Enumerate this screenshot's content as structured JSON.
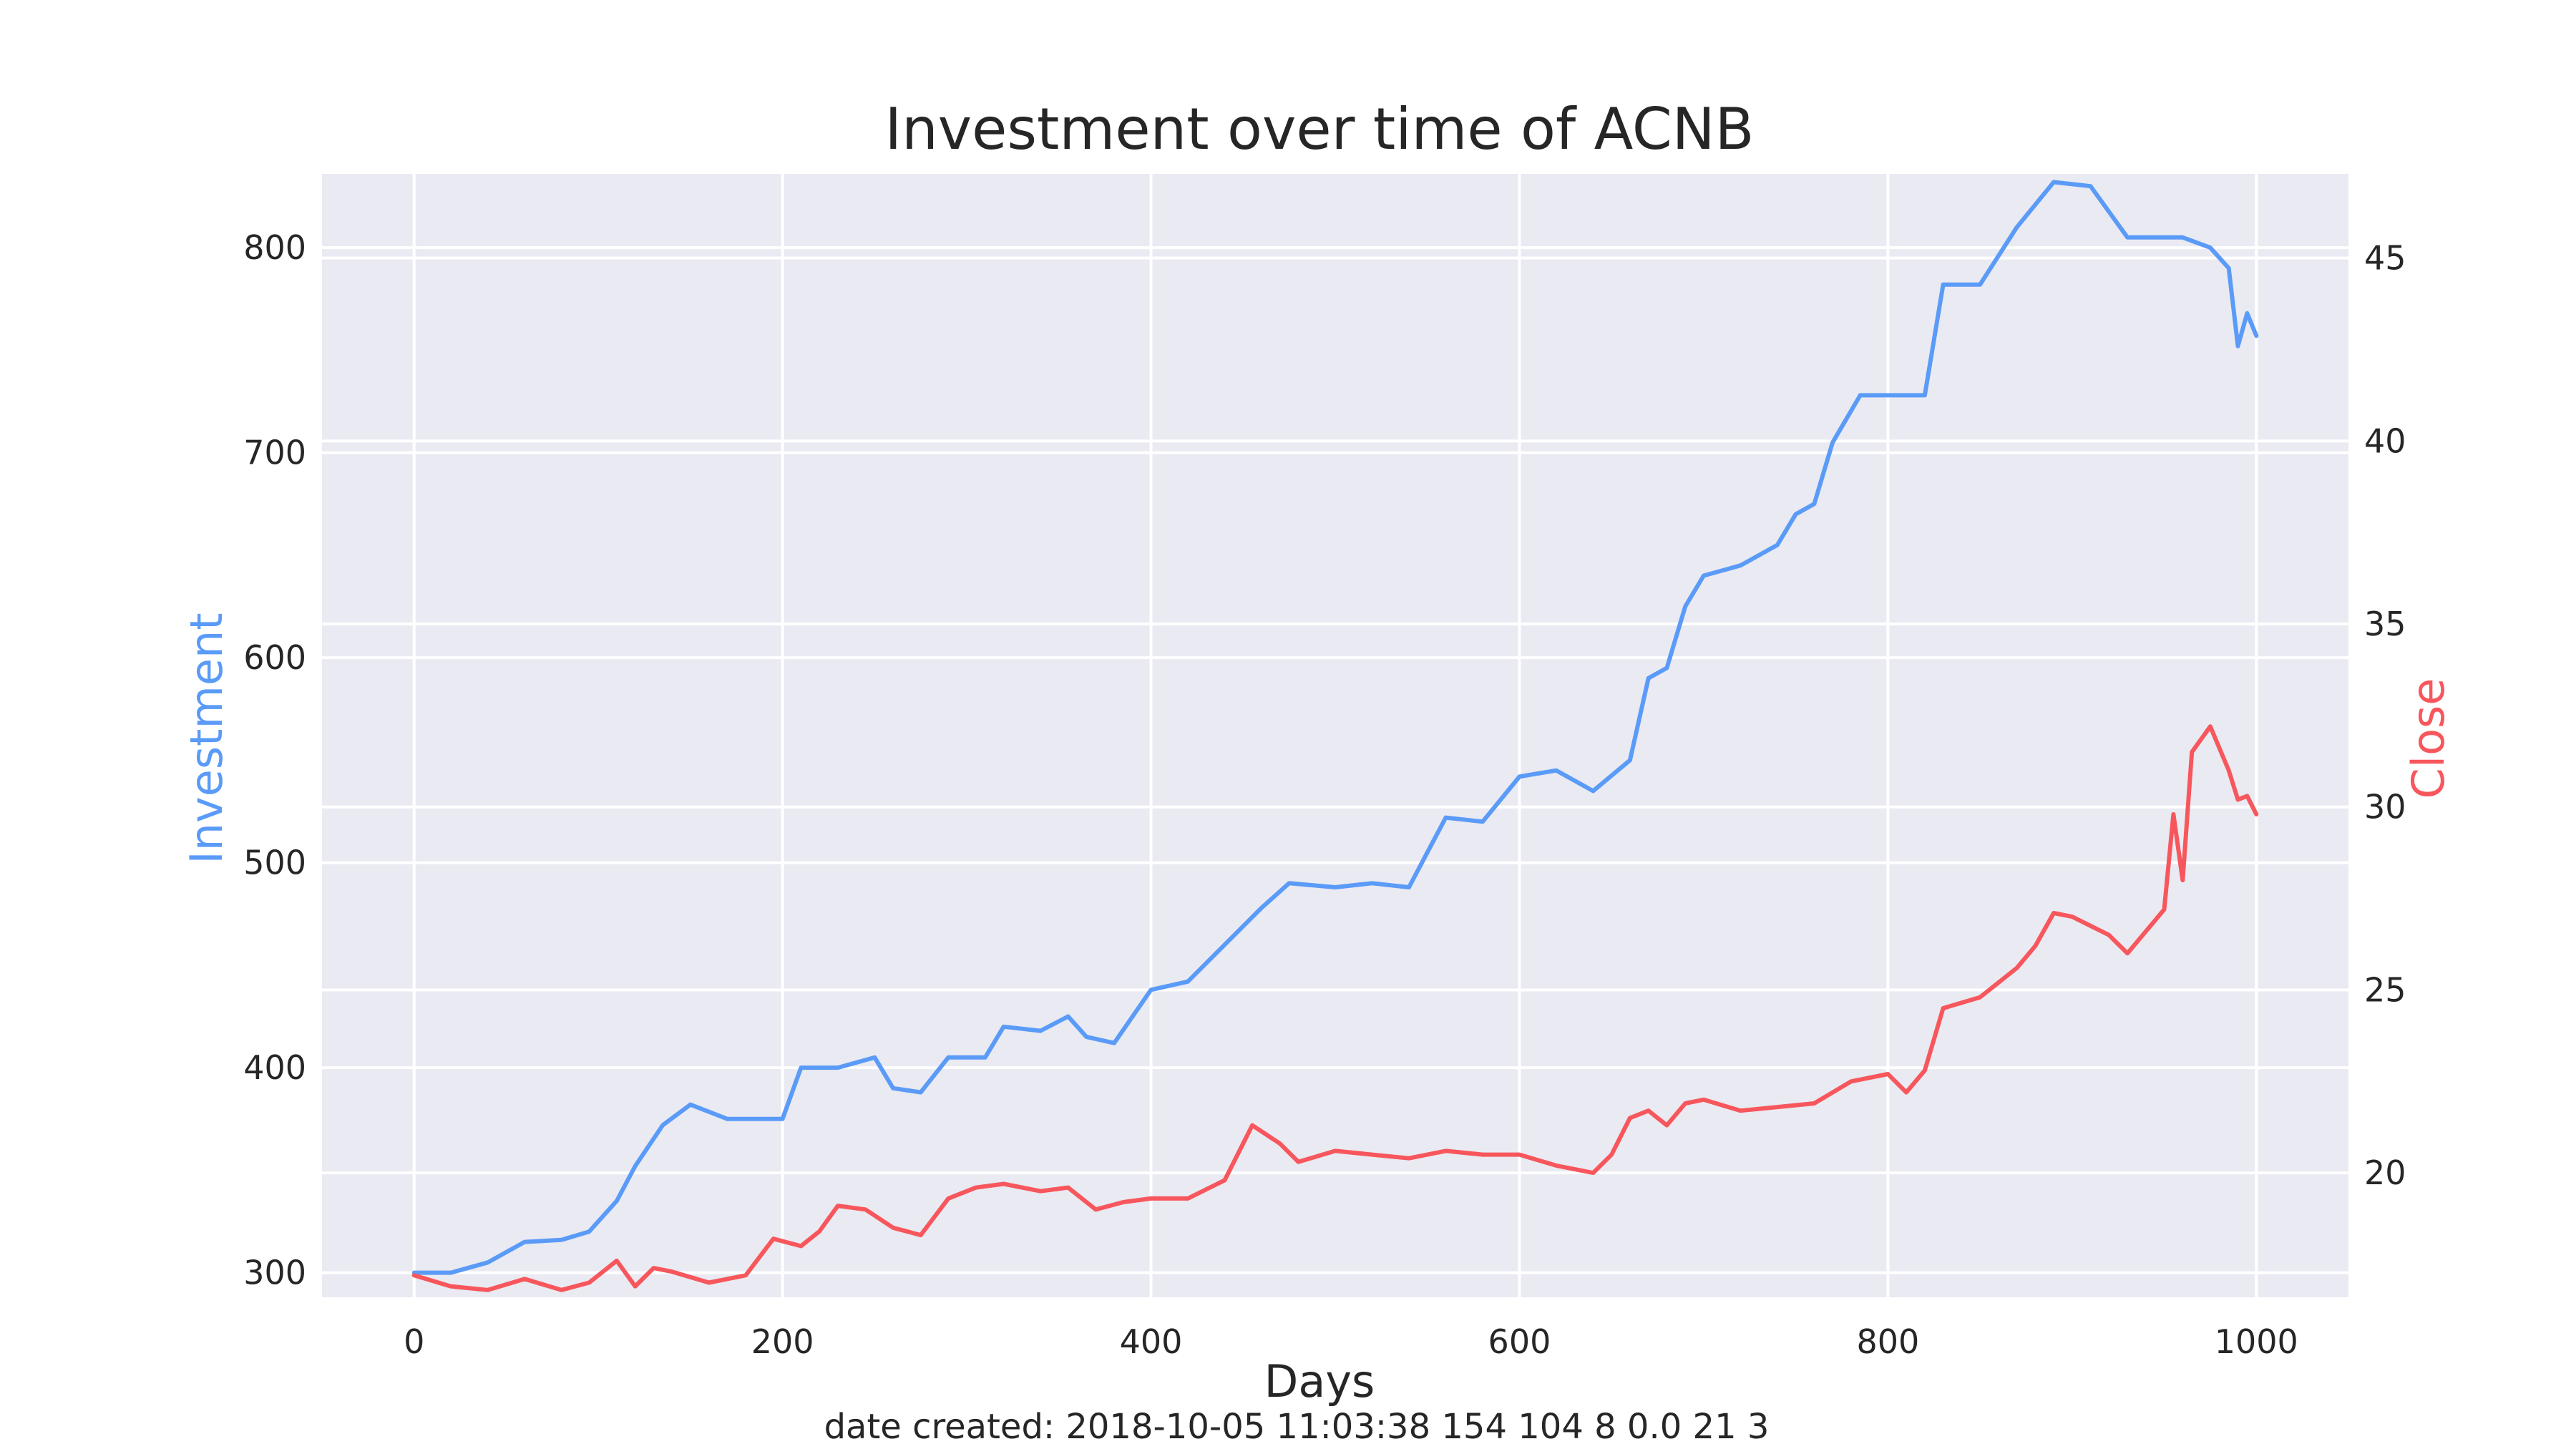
{
  "chart_data": {
    "type": "line",
    "title": "Investment over time of ACNB",
    "xlabel": "Days",
    "ylabel_left": "Investment",
    "ylabel_right": "Close",
    "footer": "date created: 2018-10-05 11:03:38 154 104 8 0.0 21 3",
    "xlim": [
      -50,
      1050
    ],
    "ylim_left": [
      288,
      836
    ],
    "ylim_right": [
      16.6,
      47.3
    ],
    "xticks": [
      0,
      200,
      400,
      600,
      800,
      1000
    ],
    "yticks_left": [
      300,
      400,
      500,
      600,
      700,
      800
    ],
    "yticks_right": [
      20,
      25,
      30,
      35,
      40,
      45
    ],
    "grid": true,
    "style": "seaborn-darkgrid",
    "colors": {
      "plot_bg": "#EAEAF2",
      "grid": "#FFFFFF",
      "investment": "#5B9BF8",
      "close": "#F7575C",
      "text": "#262626"
    },
    "series": [
      {
        "name": "Investment",
        "axis": "left",
        "x": [
          0,
          20,
          40,
          60,
          80,
          95,
          110,
          120,
          135,
          150,
          170,
          200,
          210,
          230,
          250,
          260,
          275,
          290,
          310,
          320,
          340,
          355,
          365,
          380,
          400,
          420,
          440,
          460,
          475,
          500,
          520,
          540,
          550,
          560,
          580,
          600,
          620,
          640,
          660,
          670,
          680,
          690,
          700,
          720,
          740,
          750,
          760,
          770,
          785,
          800,
          820,
          830,
          850,
          870,
          890,
          910,
          930,
          960,
          975,
          985,
          990,
          995,
          1000
        ],
        "y": [
          300,
          300,
          305,
          315,
          316,
          320,
          335,
          352,
          372,
          382,
          375,
          375,
          400,
          400,
          405,
          390,
          388,
          405,
          405,
          420,
          418,
          425,
          415,
          412,
          438,
          442,
          460,
          478,
          490,
          488,
          490,
          488,
          505,
          522,
          520,
          542,
          545,
          535,
          550,
          590,
          595,
          625,
          640,
          645,
          655,
          670,
          675,
          705,
          728,
          728,
          728,
          782,
          782,
          810,
          832,
          830,
          805,
          805,
          800,
          790,
          752,
          768,
          757
        ]
      },
      {
        "name": "Close",
        "axis": "right",
        "x": [
          0,
          20,
          40,
          60,
          80,
          95,
          110,
          120,
          130,
          140,
          160,
          180,
          195,
          210,
          220,
          230,
          245,
          260,
          275,
          290,
          305,
          320,
          340,
          355,
          370,
          385,
          400,
          420,
          440,
          455,
          470,
          480,
          500,
          520,
          540,
          560,
          580,
          600,
          620,
          640,
          650,
          660,
          670,
          680,
          690,
          700,
          720,
          740,
          760,
          780,
          800,
          810,
          820,
          830,
          850,
          870,
          880,
          890,
          900,
          920,
          930,
          945,
          950,
          955,
          960,
          965,
          975,
          985,
          990,
          995,
          1000
        ],
        "y": [
          17.2,
          16.9,
          16.8,
          17.1,
          16.8,
          17.0,
          17.6,
          16.9,
          17.4,
          17.3,
          17.0,
          17.2,
          18.2,
          18.0,
          18.4,
          19.1,
          19.0,
          18.5,
          18.3,
          19.3,
          19.6,
          19.7,
          19.5,
          19.6,
          19.0,
          19.2,
          19.3,
          19.3,
          19.8,
          21.3,
          20.8,
          20.3,
          20.6,
          20.5,
          20.4,
          20.6,
          20.5,
          20.5,
          20.2,
          20.0,
          20.5,
          21.5,
          21.7,
          21.3,
          21.9,
          22.0,
          21.7,
          21.8,
          21.9,
          22.5,
          22.7,
          22.2,
          22.8,
          24.5,
          24.8,
          25.6,
          26.2,
          27.1,
          27.0,
          26.5,
          26.0,
          26.9,
          27.2,
          29.8,
          28.0,
          31.5,
          32.2,
          31.0,
          30.2,
          30.3,
          29.8
        ]
      }
    ]
  }
}
